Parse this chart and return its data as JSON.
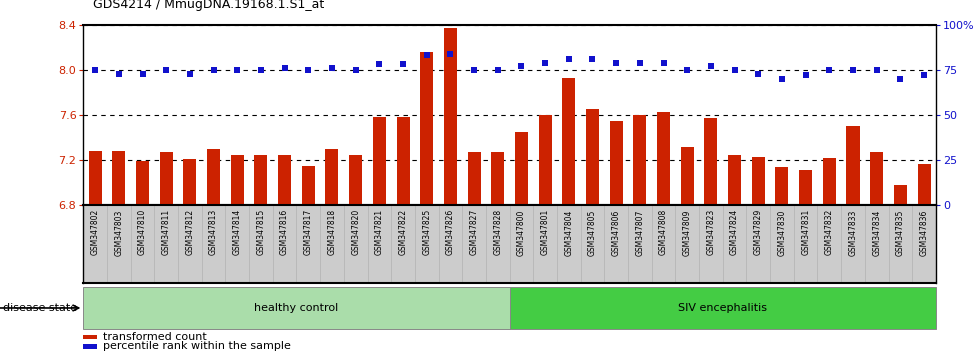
{
  "title": "GDS4214 / MmugDNA.19168.1.S1_at",
  "samples": [
    "GSM347802",
    "GSM347803",
    "GSM347810",
    "GSM347811",
    "GSM347812",
    "GSM347813",
    "GSM347814",
    "GSM347815",
    "GSM347816",
    "GSM347817",
    "GSM347818",
    "GSM347820",
    "GSM347821",
    "GSM347822",
    "GSM347825",
    "GSM347826",
    "GSM347827",
    "GSM347828",
    "GSM347800",
    "GSM347801",
    "GSM347804",
    "GSM347805",
    "GSM347806",
    "GSM347807",
    "GSM347808",
    "GSM347809",
    "GSM347823",
    "GSM347824",
    "GSM347829",
    "GSM347830",
    "GSM347831",
    "GSM347832",
    "GSM347833",
    "GSM347834",
    "GSM347835",
    "GSM347836"
  ],
  "bar_values": [
    7.28,
    7.28,
    7.19,
    7.27,
    7.21,
    7.3,
    7.25,
    7.25,
    7.25,
    7.15,
    7.3,
    7.25,
    7.58,
    7.58,
    8.16,
    8.37,
    7.27,
    7.27,
    7.45,
    7.6,
    7.93,
    7.65,
    7.55,
    7.6,
    7.63,
    7.32,
    7.57,
    7.25,
    7.23,
    7.14,
    7.11,
    7.22,
    7.5,
    7.27,
    6.98,
    7.17
  ],
  "percentile_values": [
    75,
    73,
    73,
    75,
    73,
    75,
    75,
    75,
    76,
    75,
    76,
    75,
    78,
    78,
    83,
    84,
    75,
    75,
    77,
    79,
    81,
    81,
    79,
    79,
    79,
    75,
    77,
    75,
    73,
    70,
    72,
    75,
    75,
    75,
    70,
    72
  ],
  "healthy_count": 18,
  "siv_count": 18,
  "ymin": 6.8,
  "ymax": 8.4,
  "yticks_left": [
    6.8,
    7.2,
    7.6,
    8.0,
    8.4
  ],
  "yticks_right": [
    0,
    25,
    50,
    75,
    100
  ],
  "bar_color": "#cc2200",
  "dot_color": "#1111cc",
  "xtick_bg": "#cccccc",
  "healthy_bg": "#aaddaa",
  "siv_bg": "#44cc44",
  "legend_bar_label": "transformed count",
  "legend_dot_label": "percentile rank within the sample",
  "healthy_label": "healthy control",
  "siv_label": "SIV encephalitis",
  "disease_state_label": "disease state"
}
